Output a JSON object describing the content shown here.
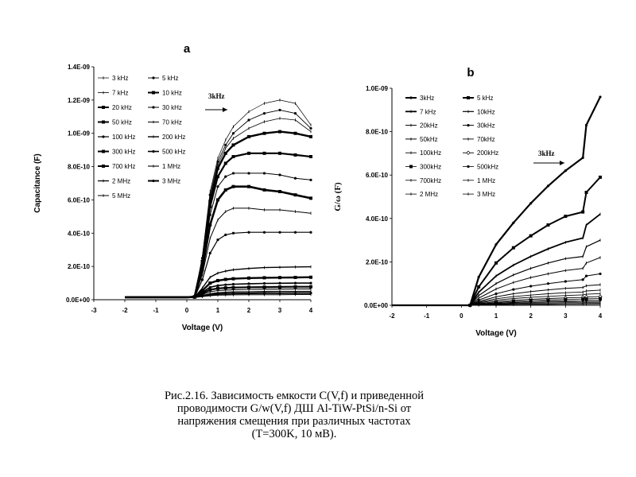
{
  "chart_data": [
    {
      "type": "line",
      "panel_label": "a",
      "title": "",
      "xlabel": "Voltage (V)",
      "ylabel": "Capacitance (F)",
      "xlim": [
        -3,
        4
      ],
      "ylim": [
        0,
        1.4e-09
      ],
      "xticks": [
        "-3",
        "-2",
        "-1",
        "0",
        "1",
        "2",
        "3",
        "4"
      ],
      "yticks": [
        "0.0E+00",
        "2.0E-10",
        "4.0E-10",
        "6.0E-10",
        "8.0E-10",
        "1.0E-09",
        "1.2E-09",
        "1.4E-09"
      ],
      "legend": [
        "3 kHz",
        "5 kHz",
        "7 kHz",
        "10 kHz",
        "20 kHz",
        "30 kHz",
        "50 kHz",
        "70 kHz",
        "100 kHz",
        "200 kHz",
        "300 kHz",
        "500 kHz",
        "700 kHz",
        "1 MHz",
        "2 MHz",
        "3 MHz",
        "5 MHz"
      ],
      "legend_position": "top-left",
      "grid": false,
      "annotation": "3kHz",
      "x": [
        -2,
        -1,
        0,
        0.25,
        0.5,
        0.75,
        1,
        1.25,
        1.5,
        2,
        2.5,
        3,
        3.5,
        4
      ],
      "series": [
        {
          "name": "3 kHz",
          "values": [
            1.5e-11,
            1.5e-11,
            1.5e-11,
            1.8e-11,
            2.6e-10,
            6.5e-10,
            8.5e-10,
            9.6e-10,
            1.04e-09,
            1.13e-09,
            1.18e-09,
            1.2e-09,
            1.18e-09,
            1.05e-09
          ]
        },
        {
          "name": "5 kHz",
          "values": [
            1.5e-11,
            1.5e-11,
            1.5e-11,
            1.8e-11,
            2.5e-10,
            6.3e-10,
            8.3e-10,
            9.3e-10,
            1e-09,
            1.08e-09,
            1.12e-09,
            1.14e-09,
            1.12e-09,
            1.03e-09
          ]
        },
        {
          "name": "7 kHz",
          "values": [
            1.5e-11,
            1.5e-11,
            1.5e-11,
            1.8e-11,
            2.4e-10,
            6.1e-10,
            8.1e-10,
            9.1e-10,
            9.7e-10,
            1.03e-09,
            1.07e-09,
            1.09e-09,
            1.08e-09,
            1.01e-09
          ]
        },
        {
          "name": "10 kHz",
          "values": [
            1.5e-11,
            1.5e-11,
            1.5e-11,
            1.8e-11,
            2.3e-10,
            5.9e-10,
            7.9e-10,
            8.8e-10,
            9.3e-10,
            9.8e-10,
            1e-09,
            1.01e-09,
            1e-09,
            9.8e-10
          ]
        },
        {
          "name": "20 kHz",
          "values": [
            1.5e-11,
            1.5e-11,
            1.5e-11,
            1.7e-11,
            2.2e-10,
            5.6e-10,
            7.4e-10,
            8.2e-10,
            8.6e-10,
            8.8e-10,
            8.8e-10,
            8.8e-10,
            8.7e-10,
            8.6e-10
          ]
        },
        {
          "name": "30 kHz",
          "values": [
            1.5e-11,
            1.5e-11,
            1.5e-11,
            1.7e-11,
            2e-10,
            5.1e-10,
            6.8e-10,
            7.4e-10,
            7.6e-10,
            7.6e-10,
            7.6e-10,
            7.5e-10,
            7.3e-10,
            7.2e-10
          ]
        },
        {
          "name": "50 kHz",
          "values": [
            1.5e-11,
            1.5e-11,
            1.5e-11,
            1.7e-11,
            1.8e-10,
            4.5e-10,
            6e-10,
            6.6e-10,
            6.8e-10,
            6.8e-10,
            6.6e-10,
            6.5e-10,
            6.3e-10,
            6.1e-10
          ]
        },
        {
          "name": "70 kHz",
          "values": [
            1.5e-11,
            1.5e-11,
            1.5e-11,
            1.7e-11,
            1.5e-10,
            3.7e-10,
            4.8e-10,
            5.3e-10,
            5.5e-10,
            5.5e-10,
            5.4e-10,
            5.4e-10,
            5.3e-10,
            5.2e-10
          ]
        },
        {
          "name": "100 kHz",
          "values": [
            1.5e-11,
            1.5e-11,
            1.5e-11,
            1.6e-11,
            1.2e-10,
            2.8e-10,
            3.6e-10,
            3.9e-10,
            4e-10,
            4.05e-10,
            4.05e-10,
            4.05e-10,
            4.05e-10,
            4.05e-10
          ]
        },
        {
          "name": "200 kHz",
          "values": [
            1.5e-11,
            1.5e-11,
            1.5e-11,
            1.6e-11,
            7e-11,
            1.35e-10,
            1.6e-10,
            1.72e-10,
            1.8e-10,
            1.88e-10,
            1.93e-10,
            1.95e-10,
            1.97e-10,
            1.98e-10
          ]
        },
        {
          "name": "300 kHz",
          "values": [
            1.5e-11,
            1.5e-11,
            1.5e-11,
            1.6e-11,
            5.5e-11,
            1e-10,
            1.15e-10,
            1.22e-10,
            1.26e-10,
            1.3e-10,
            1.32e-10,
            1.33e-10,
            1.34e-10,
            1.35e-10
          ]
        },
        {
          "name": "500 kHz",
          "values": [
            1.5e-11,
            1.5e-11,
            1.5e-11,
            1.6e-11,
            4.5e-11,
            7.5e-11,
            8.5e-11,
            9e-11,
            9.3e-11,
            9.6e-11,
            9.8e-11,
            9.9e-11,
            1e-10,
            1e-10
          ]
        },
        {
          "name": "700 kHz",
          "values": [
            1.5e-11,
            1.5e-11,
            1.5e-11,
            1.6e-11,
            3.8e-11,
            6e-11,
            6.8e-11,
            7.1e-11,
            7.3e-11,
            7.5e-11,
            7.6e-11,
            7.7e-11,
            7.8e-11,
            7.8e-11
          ]
        },
        {
          "name": "1 MHz",
          "values": [
            1.5e-11,
            1.5e-11,
            1.5e-11,
            1.6e-11,
            3.2e-11,
            4.8e-11,
            5.5e-11,
            5.8e-11,
            6e-11,
            6.2e-11,
            6.3e-11,
            6.4e-11,
            6.5e-11,
            6.5e-11
          ]
        },
        {
          "name": "2 MHz",
          "values": [
            1.5e-11,
            1.5e-11,
            1.5e-11,
            1.5e-11,
            2.6e-11,
            3.6e-11,
            4.2e-11,
            4.5e-11,
            4.7e-11,
            4.8e-11,
            4.9e-11,
            5e-11,
            5e-11,
            5e-11
          ]
        },
        {
          "name": "3 MHz",
          "values": [
            1.5e-11,
            1.5e-11,
            1.5e-11,
            1.5e-11,
            2.2e-11,
            3e-11,
            3.4e-11,
            3.6e-11,
            3.7e-11,
            3.8e-11,
            3.9e-11,
            3.9e-11,
            4e-11,
            4e-11
          ]
        },
        {
          "name": "5 MHz",
          "values": [
            1.5e-11,
            1.5e-11,
            1.5e-11,
            1.5e-11,
            1.9e-11,
            2.4e-11,
            2.7e-11,
            2.8e-11,
            2.9e-11,
            3e-11,
            3e-11,
            3e-11,
            3.1e-11,
            3.1e-11
          ]
        }
      ]
    },
    {
      "type": "line",
      "panel_label": "b",
      "title": "",
      "xlabel": "Voltage (V)",
      "ylabel": "G/ω (F)",
      "xlim": [
        -2,
        4
      ],
      "ylim": [
        0,
        1e-09
      ],
      "xticks": [
        "-2",
        "-1",
        "0",
        "1",
        "2",
        "3",
        "4"
      ],
      "yticks": [
        "0.0E+00",
        "2.0E-10",
        "4.0E-10",
        "6.0E-10",
        "8.0E-10",
        "1.0E-09"
      ],
      "legend": [
        "3kHz",
        "5 kHz",
        "7 kHz",
        "10kHz",
        "20kHz",
        "30kHz",
        "50kHz",
        "70kHz",
        "100kHz",
        "200kHz",
        "300kHz",
        "500kHz",
        "700kHz",
        "1 MHz",
        "2 MHz",
        "3 MHz"
      ],
      "legend_position": "top-left",
      "grid": false,
      "annotation": "3kHz",
      "x": [
        -2,
        -1,
        0,
        0.25,
        0.5,
        1,
        1.5,
        2,
        2.5,
        3,
        3.5,
        3.6,
        4
      ],
      "series": [
        {
          "name": "3kHz",
          "values": [
            0,
            0,
            0,
            0,
            1.3e-10,
            2.8e-10,
            3.8e-10,
            4.7e-10,
            5.5e-10,
            6.2e-10,
            6.8e-10,
            8.3e-10,
            9.6e-10
          ]
        },
        {
          "name": "5 kHz",
          "values": [
            0,
            0,
            0,
            0,
            8.5e-11,
            1.95e-10,
            2.65e-10,
            3.2e-10,
            3.7e-10,
            4.1e-10,
            4.3e-10,
            5.2e-10,
            5.9e-10
          ]
        },
        {
          "name": "7 kHz",
          "values": [
            0,
            0,
            0,
            0,
            6e-11,
            1.35e-10,
            1.85e-10,
            2.25e-10,
            2.6e-10,
            2.9e-10,
            3.1e-10,
            3.7e-10,
            4.2e-10
          ]
        },
        {
          "name": "10kHz",
          "values": [
            0,
            0,
            0,
            0,
            4.5e-11,
            1e-10,
            1.4e-10,
            1.7e-10,
            1.95e-10,
            2.15e-10,
            2.25e-10,
            2.7e-10,
            3e-10
          ]
        },
        {
          "name": "20kHz",
          "values": [
            0,
            0,
            0,
            0,
            3.3e-11,
            7.5e-11,
            1.05e-10,
            1.28e-10,
            1.45e-10,
            1.6e-10,
            1.7e-10,
            1.95e-10,
            2.2e-10
          ]
        },
        {
          "name": "30kHz",
          "values": [
            0,
            0,
            0,
            0,
            2.4e-11,
            5.3e-11,
            7.3e-11,
            8.8e-11,
            1e-10,
            1.1e-10,
            1.18e-10,
            1.35e-10,
            1.45e-10
          ]
        },
        {
          "name": "50kHz",
          "values": [
            0,
            0,
            0,
            0,
            1.8e-11,
            3.9e-11,
            5.3e-11,
            6.3e-11,
            7.1e-11,
            7.8e-11,
            8.2e-11,
            9e-11,
            9.5e-11
          ]
        },
        {
          "name": "70kHz",
          "values": [
            0,
            0,
            0,
            0,
            1.4e-11,
            3e-11,
            4e-11,
            4.7e-11,
            5.3e-11,
            5.8e-11,
            6.1e-11,
            6.6e-11,
            7e-11
          ]
        },
        {
          "name": "100kHz",
          "values": [
            0,
            0,
            0,
            0,
            1.1e-11,
            2.3e-11,
            3.1e-11,
            3.7e-11,
            4.1e-11,
            4.5e-11,
            4.8e-11,
            5.1e-11,
            5.4e-11
          ]
        },
        {
          "name": "200kHz",
          "values": [
            0,
            0,
            0,
            0,
            8e-12,
            1.7e-11,
            2.3e-11,
            2.8e-11,
            3.1e-11,
            3.4e-11,
            3.6e-11,
            3.8e-11,
            4e-11
          ]
        },
        {
          "name": "300kHz",
          "values": [
            0,
            0,
            0,
            0,
            6e-12,
            1.3e-11,
            1.8e-11,
            2.2e-11,
            2.5e-11,
            2.7e-11,
            2.9e-11,
            3e-11,
            3.1e-11
          ]
        },
        {
          "name": "500kHz",
          "values": [
            0,
            0,
            0,
            0,
            5e-12,
            1e-11,
            1.4e-11,
            1.7e-11,
            1.9e-11,
            2.1e-11,
            2.2e-11,
            2.3e-11,
            2.4e-11
          ]
        },
        {
          "name": "700kHz",
          "values": [
            0,
            0,
            0,
            0,
            4e-12,
            8e-12,
            1.1e-11,
            1.3e-11,
            1.5e-11,
            1.6e-11,
            1.7e-11,
            1.75e-11,
            1.8e-11
          ]
        },
        {
          "name": "1 MHz",
          "values": [
            0,
            0,
            0,
            0,
            3e-12,
            6e-12,
            8e-12,
            1e-11,
            1.1e-11,
            1.2e-11,
            1.3e-11,
            1.35e-11,
            1.4e-11
          ]
        },
        {
          "name": "2 MHz",
          "values": [
            0,
            0,
            0,
            0,
            2e-12,
            4e-12,
            5e-12,
            6e-12,
            7e-12,
            7.5e-12,
            8e-12,
            8.2e-12,
            8.5e-12
          ]
        },
        {
          "name": "3 MHz",
          "values": [
            0,
            0,
            0,
            0,
            1e-12,
            2.5e-12,
            3.5e-12,
            4e-12,
            4.5e-12,
            5e-12,
            5.2e-12,
            5.4e-12,
            5.5e-12
          ]
        }
      ]
    }
  ],
  "caption": {
    "lines": [
      "Рис.2.16. Зависимость емкости C(V,f) и приведенной",
      "проводимости G/w(V,f)  ДШ  Al-TiW-PtSi/n-Si  от",
      "напряжения  смещения при различных частотах",
      "(T=300K, 10 мВ)."
    ]
  }
}
